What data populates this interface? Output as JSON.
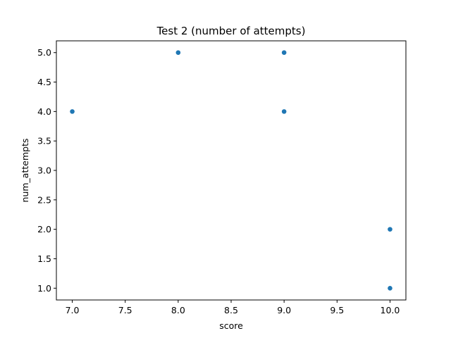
{
  "chart_data": {
    "type": "scatter",
    "title": "Test 2 (number of attempts)",
    "xlabel": "score",
    "ylabel": "num_attempts",
    "x": [
      7.0,
      8.0,
      9.0,
      9.0,
      10.0,
      10.0
    ],
    "y": [
      4.0,
      5.0,
      5.0,
      4.0,
      2.0,
      1.0
    ],
    "xlim": [
      6.85,
      10.15
    ],
    "ylim": [
      0.8,
      5.2
    ],
    "xticks": [
      "7.0",
      "7.5",
      "8.0",
      "8.5",
      "9.0",
      "9.5",
      "10.0"
    ],
    "yticks": [
      "1.0",
      "1.5",
      "2.0",
      "2.5",
      "3.0",
      "3.5",
      "4.0",
      "4.5",
      "5.0"
    ],
    "grid": false,
    "marker_color": "#1f77b4"
  }
}
